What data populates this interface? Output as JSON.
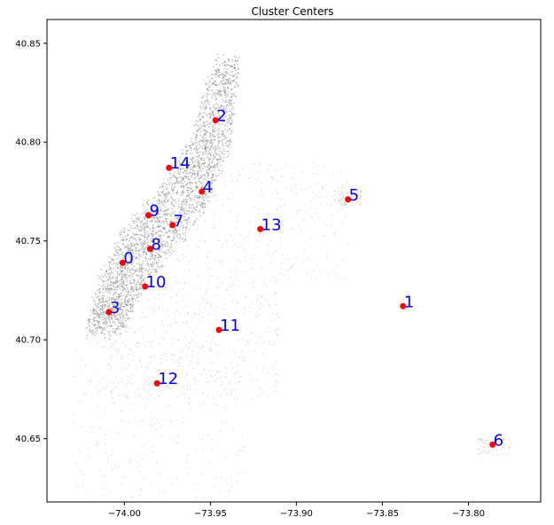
{
  "chart_data": {
    "type": "scatter",
    "title": "Cluster Centers",
    "xlabel": "",
    "ylabel": "",
    "xlim": [
      -74.045,
      -73.758
    ],
    "ylim": [
      40.618,
      40.862
    ],
    "x_ticks": [
      -74.0,
      -73.95,
      -73.9,
      -73.85,
      -73.8
    ],
    "x_tick_labels": [
      "−74.00",
      "−73.95",
      "−73.90",
      "−73.85",
      "−73.80"
    ],
    "y_ticks": [
      40.65,
      40.7,
      40.75,
      40.8,
      40.85
    ],
    "y_tick_labels": [
      "40.65",
      "40.70",
      "40.75",
      "40.80",
      "40.85"
    ],
    "grid": false,
    "legend": "none",
    "colors": {
      "centers": "#ff0000",
      "labels": "#0000ff",
      "background_points": "#808080"
    },
    "centers": [
      {
        "label": "0",
        "x": -74.001,
        "y": 40.739
      },
      {
        "label": "1",
        "x": -73.838,
        "y": 40.717
      },
      {
        "label": "2",
        "x": -73.947,
        "y": 40.811
      },
      {
        "label": "3",
        "x": -74.009,
        "y": 40.714
      },
      {
        "label": "4",
        "x": -73.955,
        "y": 40.775
      },
      {
        "label": "5",
        "x": -73.87,
        "y": 40.771
      },
      {
        "label": "6",
        "x": -73.786,
        "y": 40.647
      },
      {
        "label": "7",
        "x": -73.972,
        "y": 40.758
      },
      {
        "label": "8",
        "x": -73.985,
        "y": 40.746
      },
      {
        "label": "9",
        "x": -73.986,
        "y": 40.763
      },
      {
        "label": "10",
        "x": -73.988,
        "y": 40.727
      },
      {
        "label": "11",
        "x": -73.945,
        "y": 40.705
      },
      {
        "label": "12",
        "x": -73.981,
        "y": 40.678
      },
      {
        "label": "13",
        "x": -73.921,
        "y": 40.756
      },
      {
        "label": "14",
        "x": -73.974,
        "y": 40.787
      }
    ]
  }
}
